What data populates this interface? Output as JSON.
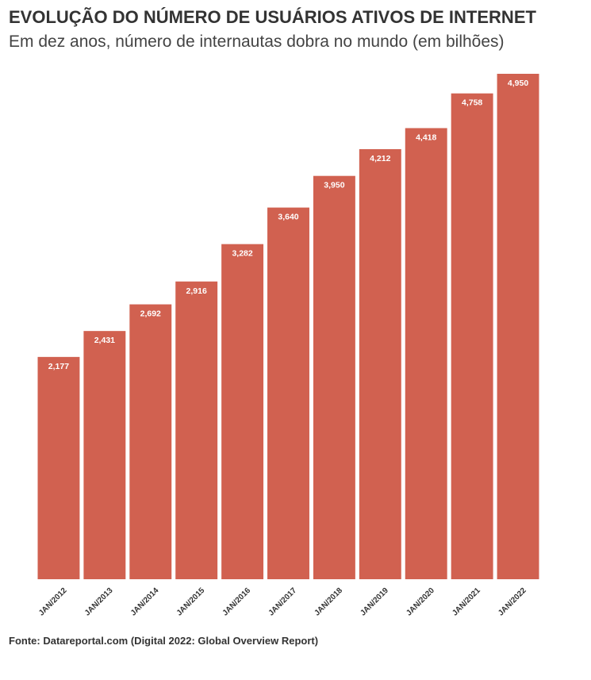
{
  "title": "EVOLUÇÃO DO NÚMERO DE USUÁRIOS ATIVOS DE INTERNET",
  "subtitle": "Em dez anos, número de internautas dobra no mundo (em bilhões)",
  "source": "Fonte: Datareportal.com (Digital 2022: Global Overview Report)",
  "colors": {
    "bar": "#d16150",
    "label": "#ffffff",
    "axis_text": "#333333"
  },
  "chart_data": {
    "type": "bar",
    "categories": [
      "JAN/2012",
      "JAN/2013",
      "JAN/2014",
      "JAN/2015",
      "JAN/2016",
      "JAN/2017",
      "JAN/2018",
      "JAN/2019",
      "JAN/2020",
      "JAN/2021",
      "JAN/2022"
    ],
    "values": [
      2.177,
      2.431,
      2.692,
      2.916,
      3.282,
      3.64,
      3.95,
      4.212,
      4.418,
      4.758,
      4.95
    ],
    "value_labels": [
      "2,177",
      "2,431",
      "2,692",
      "2,916",
      "3,282",
      "3,640",
      "3,950",
      "4,212",
      "4,418",
      "4,758",
      "4,950"
    ],
    "ylim": [
      0,
      4.95
    ],
    "grid": false,
    "legend": "none",
    "x_tick_rotation": "-45"
  }
}
